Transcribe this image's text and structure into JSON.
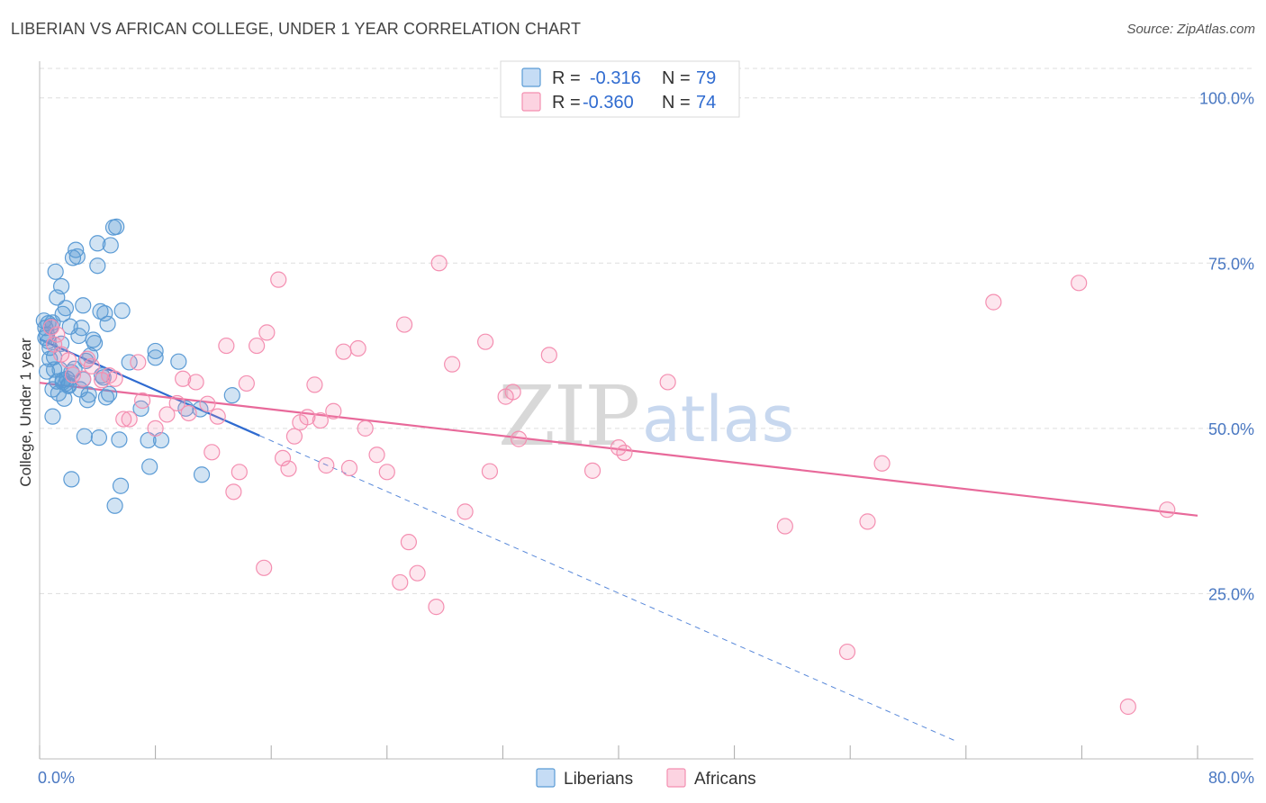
{
  "title": "LIBERIAN VS AFRICAN COLLEGE, UNDER 1 YEAR CORRELATION CHART",
  "source": "Source: ZipAtlas.com",
  "watermark": {
    "zip": "ZIP",
    "atlas": "atlas"
  },
  "legend": {
    "rows": [
      {
        "r_label": "R =",
        "r_value": "-0.316",
        "n_label": "N =",
        "n_value": "79",
        "color": "#5b9bd5"
      },
      {
        "r_label": "R =",
        "r_value": "-0.360",
        "n_label": "N =",
        "n_value": "74",
        "color": "#f48fb1"
      }
    ]
  },
  "bottom_legend": [
    "Liberians",
    "Africans"
  ],
  "chart_data": {
    "type": "scatter",
    "title": "LIBERIAN VS AFRICAN COLLEGE, UNDER 1 YEAR CORRELATION CHART",
    "xlabel": "",
    "ylabel": "College, Under 1 year",
    "xlim": [
      0,
      80
    ],
    "ylim": [
      0,
      105
    ],
    "x_tick_labels": [
      "0.0%",
      "80.0%"
    ],
    "y_ticks": [
      25,
      50,
      75,
      100
    ],
    "y_tick_labels": [
      "25.0%",
      "50.0%",
      "75.0%",
      "100.0%"
    ],
    "grid": true,
    "legend_position": "top-center",
    "series": [
      {
        "name": "Liberians",
        "color": "#5b9bd5",
        "line_color": "#2f6bd0",
        "trend": {
          "x0": 0,
          "y0": 63.5,
          "x1": 15.2,
          "y1": 48.9,
          "dashed_to_x": 63.2
        },
        "points": [
          [
            0.3,
            66.3
          ],
          [
            0.4,
            63.7
          ],
          [
            0.4,
            65.2
          ],
          [
            0.5,
            64.2
          ],
          [
            0.6,
            65.9
          ],
          [
            0.7,
            62.2
          ],
          [
            0.8,
            65.5
          ],
          [
            0.9,
            66.0
          ],
          [
            0.5,
            58.6
          ],
          [
            0.9,
            55.9
          ],
          [
            0.9,
            51.8
          ],
          [
            1.0,
            60.8
          ],
          [
            1.1,
            73.7
          ],
          [
            1.2,
            69.8
          ],
          [
            1.3,
            55.3
          ],
          [
            1.4,
            58.9
          ],
          [
            1.5,
            62.8
          ],
          [
            1.5,
            71.5
          ],
          [
            1.6,
            57.3
          ],
          [
            1.6,
            67.3
          ],
          [
            1.7,
            54.5
          ],
          [
            1.8,
            68.2
          ],
          [
            1.9,
            57.5
          ],
          [
            2.0,
            56.4
          ],
          [
            2.1,
            65.4
          ],
          [
            2.2,
            58.5
          ],
          [
            2.3,
            75.8
          ],
          [
            2.4,
            59.0
          ],
          [
            2.5,
            77.0
          ],
          [
            2.6,
            76.0
          ],
          [
            2.7,
            64.0
          ],
          [
            2.8,
            55.9
          ],
          [
            2.9,
            65.2
          ],
          [
            3.0,
            68.6
          ],
          [
            3.1,
            48.8
          ],
          [
            3.2,
            60.2
          ],
          [
            3.3,
            54.3
          ],
          [
            3.4,
            55.1
          ],
          [
            3.5,
            61.0
          ],
          [
            3.7,
            63.4
          ],
          [
            3.8,
            62.9
          ],
          [
            4.0,
            78.0
          ],
          [
            4.0,
            74.6
          ],
          [
            4.1,
            48.6
          ],
          [
            4.2,
            67.7
          ],
          [
            4.3,
            58.0
          ],
          [
            4.4,
            57.7
          ],
          [
            4.5,
            67.4
          ],
          [
            4.6,
            54.7
          ],
          [
            4.7,
            65.8
          ],
          [
            4.8,
            55.2
          ],
          [
            4.9,
            77.7
          ],
          [
            5.1,
            80.4
          ],
          [
            5.2,
            38.3
          ],
          [
            5.3,
            80.5
          ],
          [
            5.6,
            41.3
          ],
          [
            5.5,
            48.3
          ],
          [
            5.7,
            67.8
          ],
          [
            6.2,
            60.0
          ],
          [
            7.0,
            53.0
          ],
          [
            7.5,
            48.2
          ],
          [
            7.6,
            44.2
          ],
          [
            8.0,
            60.7
          ],
          [
            8.0,
            61.7
          ],
          [
            8.4,
            48.2
          ],
          [
            9.6,
            60.1
          ],
          [
            10.1,
            53.0
          ],
          [
            11.2,
            43.0
          ],
          [
            11.1,
            52.9
          ],
          [
            13.3,
            55.0
          ],
          [
            2.2,
            42.3
          ],
          [
            1.6,
            57.0
          ],
          [
            0.6,
            63.2
          ],
          [
            1.2,
            57.1
          ],
          [
            2.0,
            56.6
          ],
          [
            3.0,
            57.4
          ],
          [
            1.0,
            58.9
          ],
          [
            0.7,
            60.5
          ],
          [
            1.8,
            56.8
          ]
        ]
      },
      {
        "name": "Africans",
        "color": "#f48fb1",
        "line_color": "#e8699a",
        "trend": {
          "x0": 0,
          "y0": 56.9,
          "x1": 80,
          "y1": 36.8
        },
        "points": [
          [
            0.8,
            65.3
          ],
          [
            1.2,
            64.2
          ],
          [
            1.5,
            61.2
          ],
          [
            2.0,
            60.3
          ],
          [
            2.3,
            58.1
          ],
          [
            3.0,
            57.5
          ],
          [
            3.3,
            60.5
          ],
          [
            3.6,
            59.4
          ],
          [
            4.3,
            57.3
          ],
          [
            4.8,
            58.0
          ],
          [
            5.2,
            57.5
          ],
          [
            6.2,
            51.4
          ],
          [
            5.8,
            51.4
          ],
          [
            6.8,
            60.0
          ],
          [
            7.1,
            54.2
          ],
          [
            8.0,
            50.0
          ],
          [
            8.8,
            52.1
          ],
          [
            9.5,
            53.8
          ],
          [
            9.9,
            57.5
          ],
          [
            10.3,
            52.3
          ],
          [
            10.8,
            57.0
          ],
          [
            11.6,
            53.7
          ],
          [
            11.9,
            46.4
          ],
          [
            12.3,
            51.8
          ],
          [
            12.9,
            62.5
          ],
          [
            13.4,
            40.4
          ],
          [
            13.8,
            43.4
          ],
          [
            14.3,
            56.8
          ],
          [
            15.0,
            62.5
          ],
          [
            15.5,
            28.9
          ],
          [
            15.7,
            64.5
          ],
          [
            16.5,
            72.5
          ],
          [
            16.8,
            45.5
          ],
          [
            17.2,
            43.9
          ],
          [
            17.6,
            48.8
          ],
          [
            18.0,
            50.9
          ],
          [
            18.5,
            51.7
          ],
          [
            19.0,
            56.6
          ],
          [
            19.4,
            51.2
          ],
          [
            19.8,
            44.4
          ],
          [
            20.3,
            52.6
          ],
          [
            21.0,
            61.6
          ],
          [
            21.4,
            44.0
          ],
          [
            22.0,
            62.1
          ],
          [
            22.5,
            50.0
          ],
          [
            23.3,
            46.0
          ],
          [
            24.0,
            43.4
          ],
          [
            24.9,
            26.7
          ],
          [
            25.2,
            65.7
          ],
          [
            25.5,
            32.8
          ],
          [
            26.1,
            28.1
          ],
          [
            27.4,
            23.0
          ],
          [
            27.6,
            75.0
          ],
          [
            28.5,
            59.7
          ],
          [
            29.4,
            37.4
          ],
          [
            30.8,
            63.1
          ],
          [
            31.1,
            43.5
          ],
          [
            32.2,
            54.8
          ],
          [
            32.7,
            55.5
          ],
          [
            33.1,
            48.4
          ],
          [
            35.2,
            61.1
          ],
          [
            38.2,
            43.6
          ],
          [
            40.0,
            47.1
          ],
          [
            40.4,
            46.3
          ],
          [
            43.4,
            57.0
          ],
          [
            51.5,
            35.2
          ],
          [
            55.8,
            16.2
          ],
          [
            57.2,
            35.9
          ],
          [
            58.2,
            44.7
          ],
          [
            65.9,
            69.1
          ],
          [
            71.8,
            72.0
          ],
          [
            75.2,
            7.9
          ],
          [
            77.9,
            37.7
          ],
          [
            1.0,
            62.7
          ]
        ]
      }
    ]
  }
}
